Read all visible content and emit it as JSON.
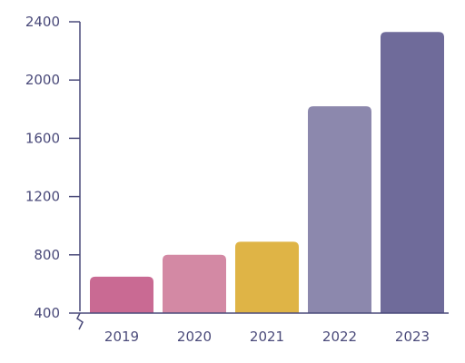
{
  "chart_data": {
    "type": "bar",
    "categories": [
      "2019",
      "2020",
      "2021",
      "2022",
      "2023"
    ],
    "values": [
      650,
      800,
      890,
      1820,
      2330
    ],
    "ylim": [
      400,
      2400
    ],
    "yticks": [
      400,
      800,
      1200,
      1600,
      2000,
      2400
    ],
    "ytick_labels": [
      "400",
      "800",
      "1200",
      "1600",
      "2000",
      "2400"
    ],
    "bar_colors": [
      "#c96a93",
      "#d389a4",
      "#dfb446",
      "#8c88ad",
      "#6f6b9a"
    ],
    "axis_color": "#4a4a7a",
    "grid": false,
    "axis_break": true
  }
}
